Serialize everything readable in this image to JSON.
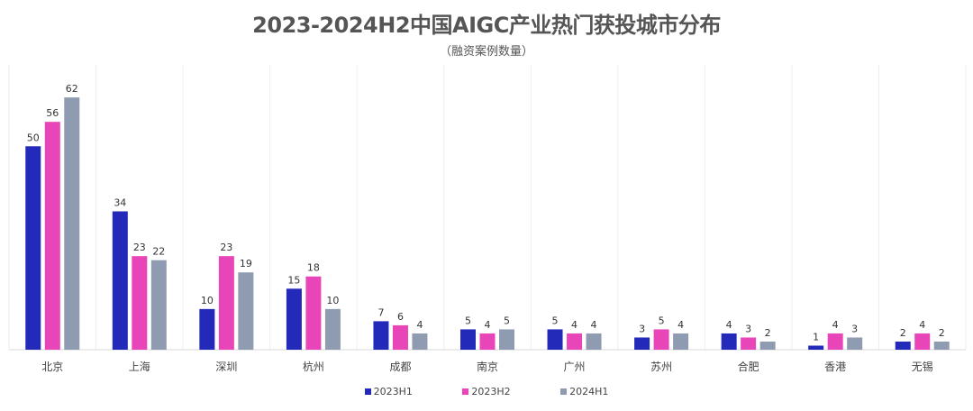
{
  "chart_data": {
    "type": "bar",
    "title": "2023-2024H2中国AIGC产业热门获投城市分布",
    "subtitle": "（融资案例数量）",
    "xlabel": "",
    "ylabel": "",
    "categories": [
      "北京",
      "上海",
      "深圳",
      "杭州",
      "成都",
      "南京",
      "广州",
      "苏州",
      "合肥",
      "香港",
      "无锡"
    ],
    "series": [
      {
        "name": "2023H1",
        "color": "#2329b8",
        "values": [
          50,
          34,
          10,
          15,
          7,
          5,
          5,
          3,
          4,
          1,
          2
        ]
      },
      {
        "name": "2023H2",
        "color": "#e845b8",
        "values": [
          56,
          23,
          23,
          18,
          6,
          4,
          4,
          5,
          3,
          4,
          4
        ]
      },
      {
        "name": "2024H1",
        "color": "#8f9bb0",
        "values": [
          62,
          22,
          19,
          10,
          4,
          5,
          4,
          4,
          2,
          3,
          2
        ]
      }
    ],
    "ylim": [
      0,
      70
    ],
    "grid": "vertical",
    "legend": "bottom-center",
    "data_labels": true
  }
}
